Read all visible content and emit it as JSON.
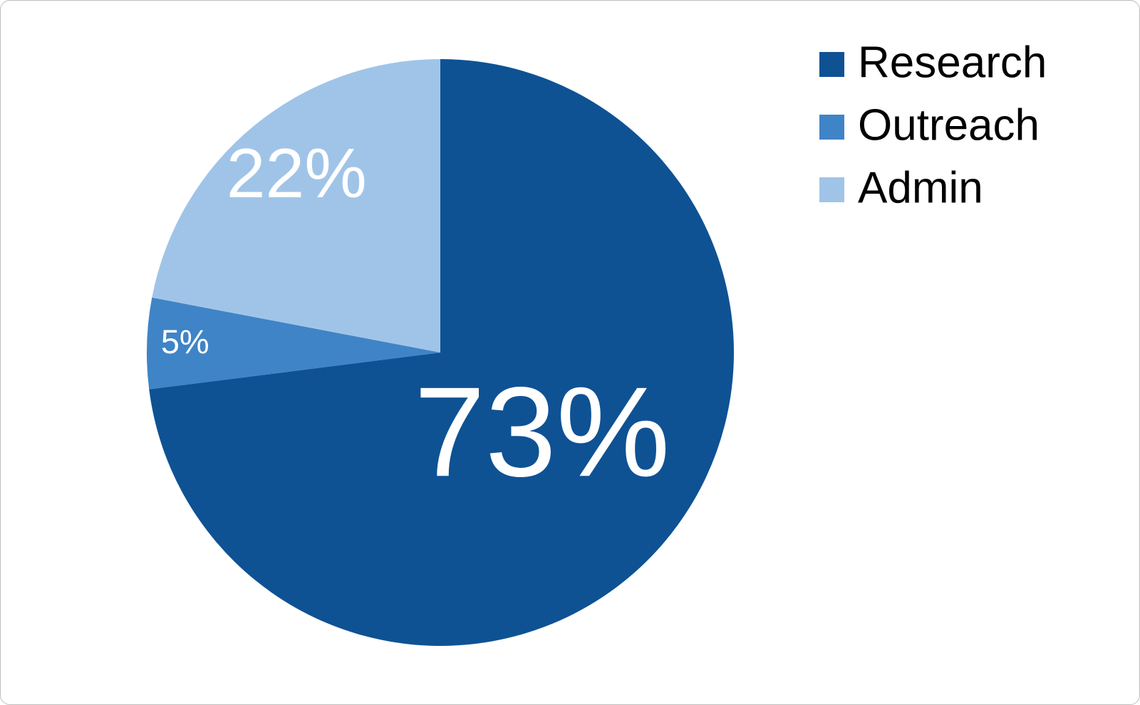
{
  "chart_data": {
    "type": "pie",
    "categories": [
      "Research",
      "Outreach",
      "Admin"
    ],
    "values": [
      73,
      5,
      22
    ],
    "value_labels": [
      "73%",
      "5%",
      "22%"
    ],
    "colors": [
      "#0e5294",
      "#3f84c6",
      "#a0c4e8"
    ],
    "legend": "top-right"
  }
}
